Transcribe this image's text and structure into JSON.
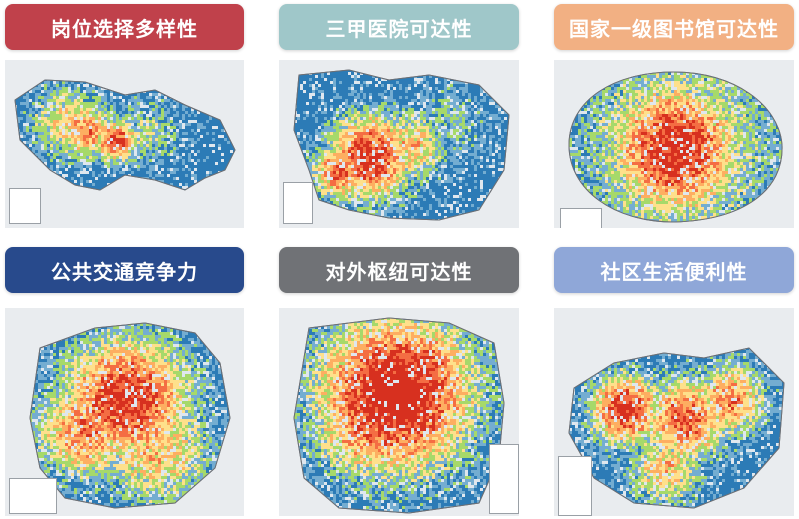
{
  "panels": [
    {
      "id": "job",
      "title": "岗位选择多样性",
      "header_bg": "#c0414b",
      "header_fg": "#ffffff"
    },
    {
      "id": "hospital",
      "title": "三甲医院可达性",
      "header_bg": "#9fc7c9",
      "header_fg": "#ffffff"
    },
    {
      "id": "library",
      "title": "国家一级图书馆可达性",
      "header_bg": "#f2b083",
      "header_fg": "#ffffff"
    },
    {
      "id": "transit",
      "title": "公共交通竞争力",
      "header_bg": "#284a8c",
      "header_fg": "#ffffff"
    },
    {
      "id": "hub",
      "title": "对外枢纽可达性",
      "header_bg": "#707276",
      "header_fg": "#ffffff"
    },
    {
      "id": "community",
      "title": "社区生活便利性",
      "header_bg": "#8fa7d8",
      "header_fg": "#ffffff"
    }
  ],
  "palette": {
    "high": "#d7301f",
    "mid_high": "#f46d43",
    "mid": "#fdae61",
    "mid_low": "#fee08b",
    "low_green": "#a6d96a",
    "low_blue": "#74add1",
    "lowest": "#2c7bb6"
  },
  "map_icons": [
    "heat-map-icon",
    "heat-map-icon",
    "heat-map-icon",
    "heat-map-icon",
    "heat-map-icon",
    "heat-map-icon"
  ]
}
